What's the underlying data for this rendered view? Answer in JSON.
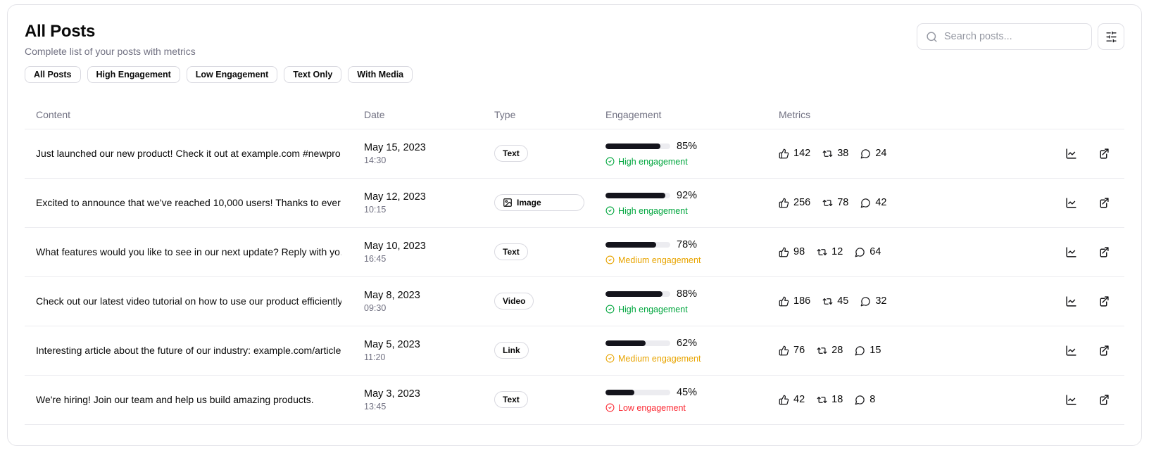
{
  "page": {
    "title": "All Posts",
    "subtitle": "Complete list of your posts with metrics"
  },
  "filters": [
    {
      "label": "All Posts"
    },
    {
      "label": "High Engagement"
    },
    {
      "label": "Low Engagement"
    },
    {
      "label": "Text Only"
    },
    {
      "label": "With Media"
    }
  ],
  "search": {
    "placeholder": "Search posts...",
    "value": ""
  },
  "icons": {
    "search": "magnifier",
    "filter": "horizontal-sliders",
    "image_badge": "picture",
    "status": "circle-check",
    "likes": "thumbs-up",
    "reposts": "repeat-arrows",
    "comments": "speech-bubble",
    "analytics": "line-chart",
    "open": "external-link"
  },
  "colors": {
    "high": "#00a63e",
    "medium": "#e8a400",
    "low": "#fb2c36",
    "bar_fill": "#14141c",
    "bar_track": "#ececf0",
    "muted_text": "#717182"
  },
  "table": {
    "columns": [
      "Content",
      "Date",
      "Type",
      "Engagement",
      "Metrics"
    ],
    "rows": [
      {
        "content": "Just launched our new product! Check it out at example.com #newpro…",
        "date": "May 15, 2023",
        "time": "14:30",
        "type": "Text",
        "type_icon": "",
        "pct": 85,
        "pct_label": "85%",
        "level": "High engagement",
        "statusKey": "high",
        "likes": "142",
        "reposts": "38",
        "comments": "24"
      },
      {
        "content": "Excited to announce that we've reached 10,000 users! Thanks to ever…",
        "date": "May 12, 2023",
        "time": "10:15",
        "type": "Image",
        "type_icon": "image",
        "pct": 92,
        "pct_label": "92%",
        "level": "High engagement",
        "statusKey": "high",
        "likes": "256",
        "reposts": "78",
        "comments": "42"
      },
      {
        "content": "What features would you like to see in our next update? Reply with yo…",
        "date": "May 10, 2023",
        "time": "16:45",
        "type": "Text",
        "type_icon": "",
        "pct": 78,
        "pct_label": "78%",
        "level": "Medium engagement",
        "statusKey": "medium",
        "likes": "98",
        "reposts": "12",
        "comments": "64"
      },
      {
        "content": "Check out our latest video tutorial on how to use our product efficiently.",
        "date": "May 8, 2023",
        "time": "09:30",
        "type": "Video",
        "type_icon": "",
        "pct": 88,
        "pct_label": "88%",
        "level": "High engagement",
        "statusKey": "high",
        "likes": "186",
        "reposts": "45",
        "comments": "32"
      },
      {
        "content": "Interesting article about the future of our industry: example.com/article",
        "date": "May 5, 2023",
        "time": "11:20",
        "type": "Link",
        "type_icon": "",
        "pct": 62,
        "pct_label": "62%",
        "level": "Medium engagement",
        "statusKey": "medium",
        "likes": "76",
        "reposts": "28",
        "comments": "15"
      },
      {
        "content": "We're hiring! Join our team and help us build amazing products.",
        "date": "May 3, 2023",
        "time": "13:45",
        "type": "Text",
        "type_icon": "",
        "pct": 45,
        "pct_label": "45%",
        "level": "Low engagement",
        "statusKey": "low",
        "likes": "42",
        "reposts": "18",
        "comments": "8"
      }
    ]
  }
}
